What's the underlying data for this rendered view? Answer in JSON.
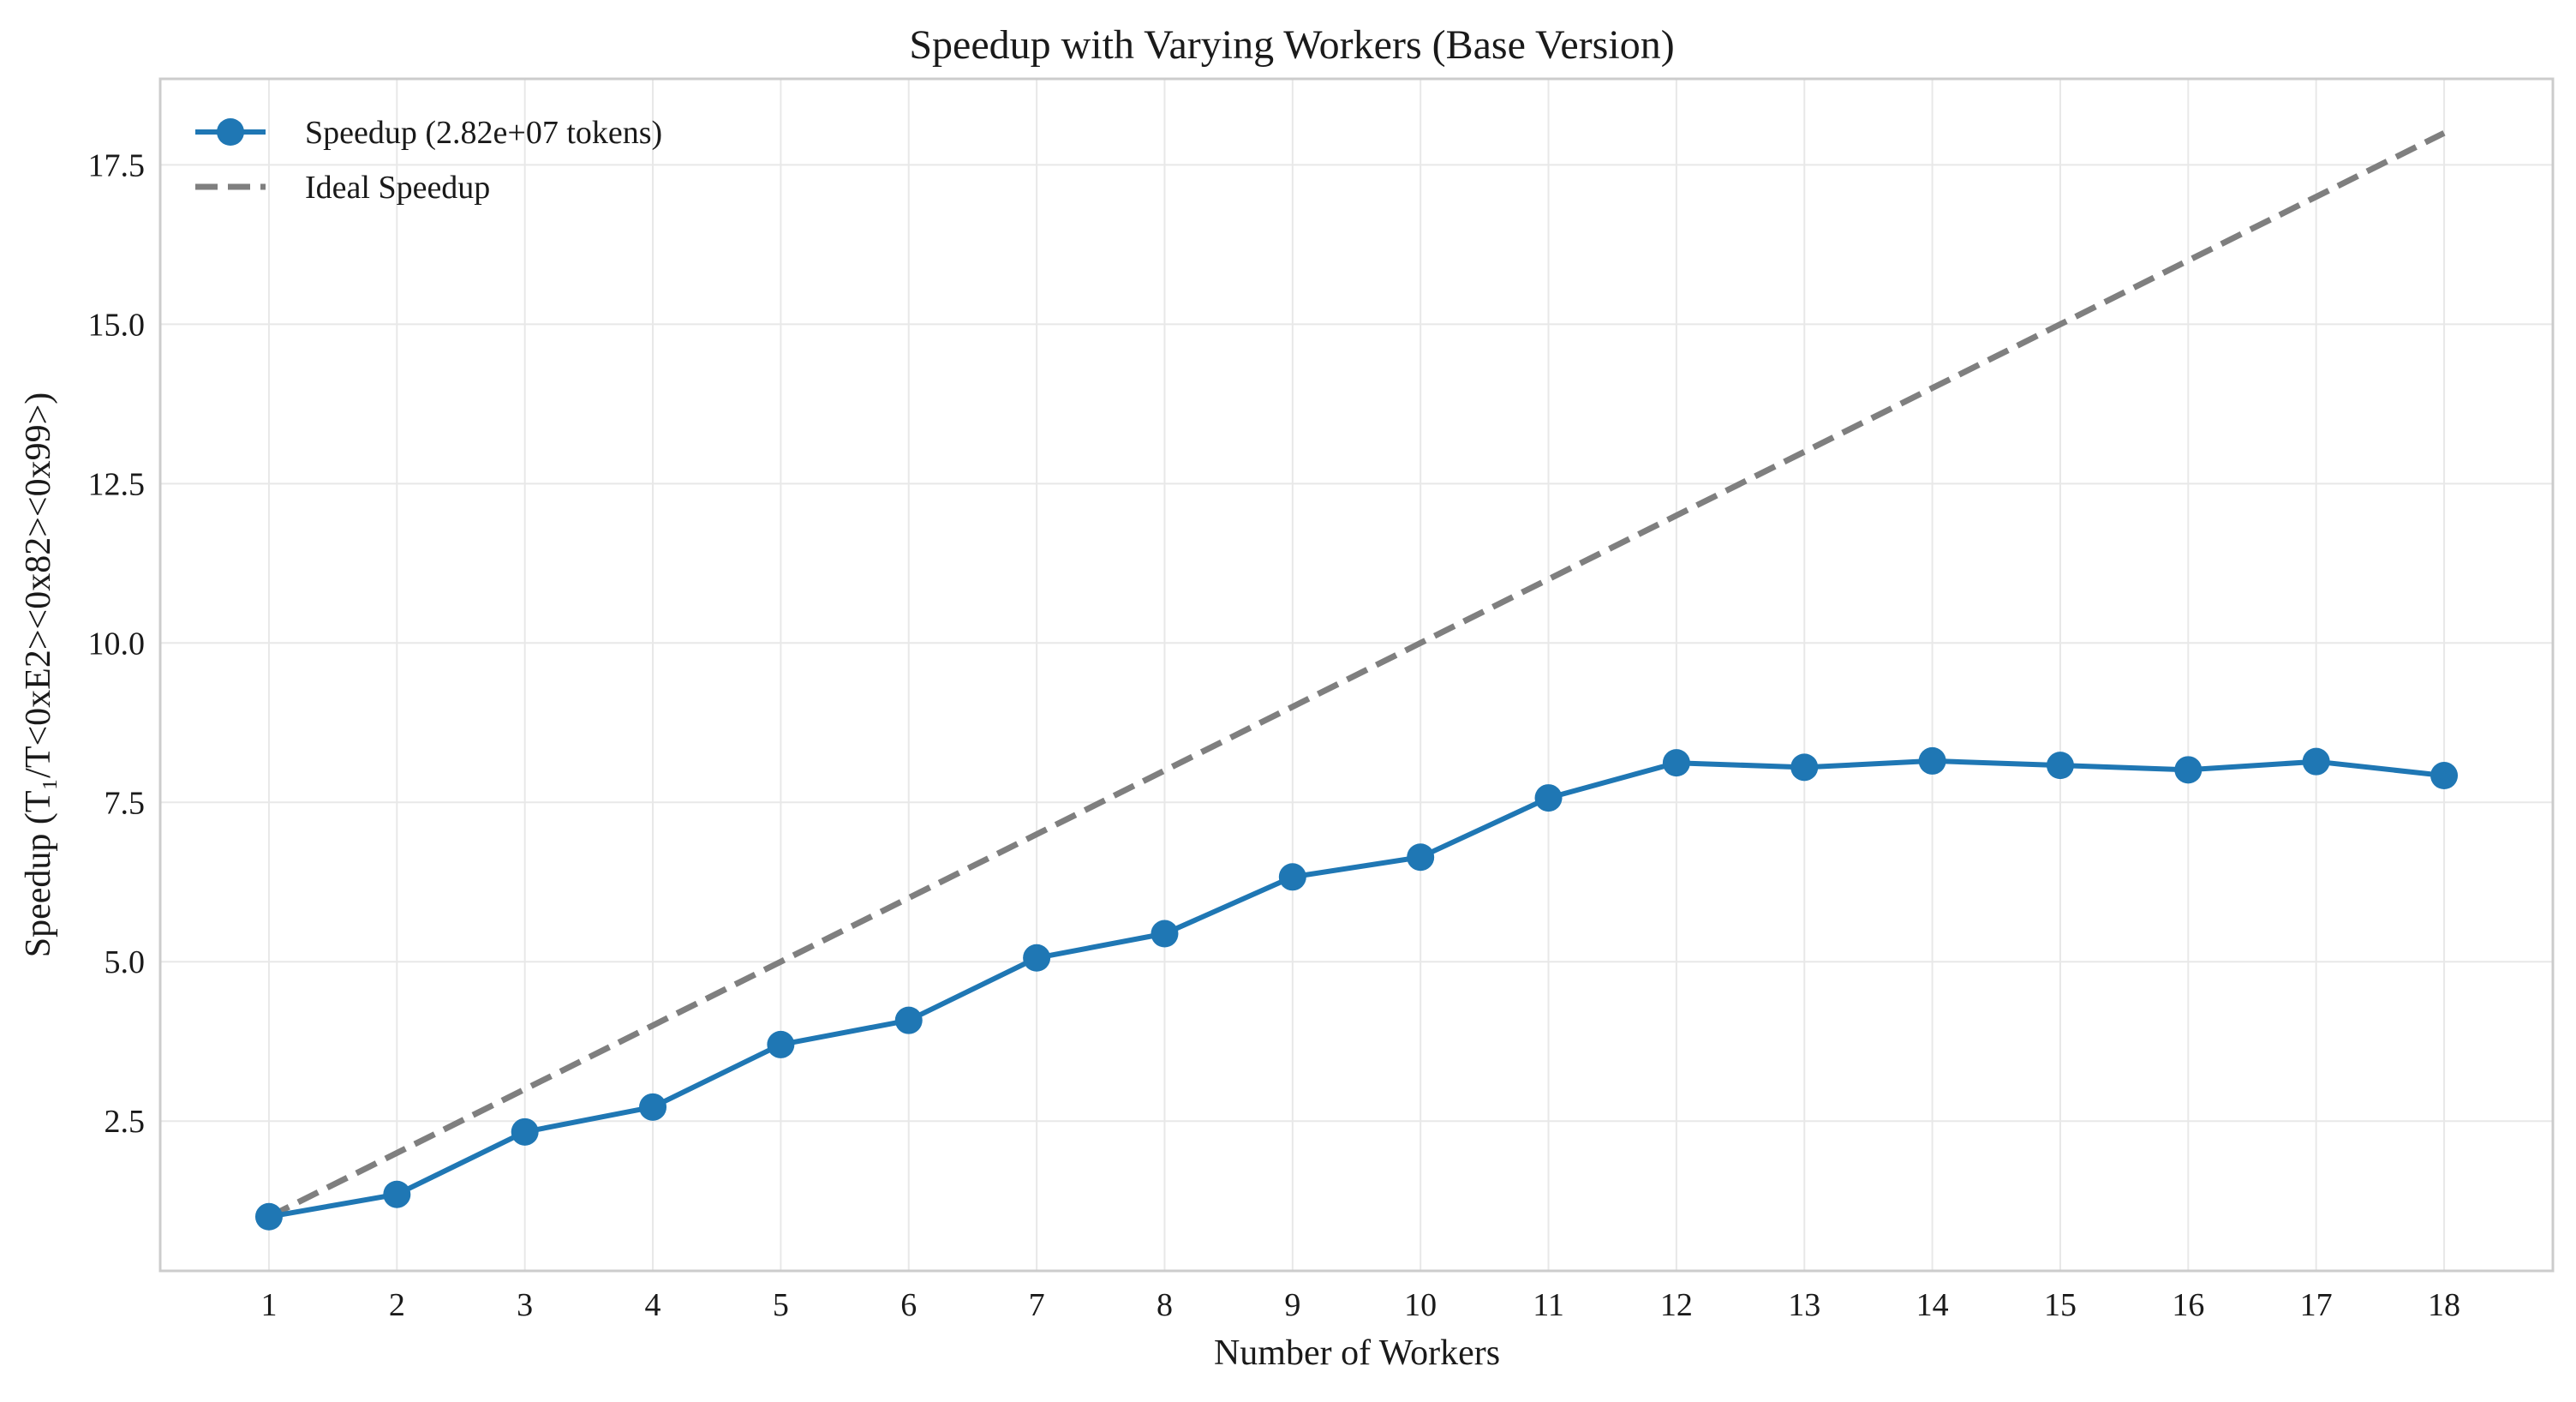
{
  "chart_data": {
    "type": "line",
    "title": "Speedup with Varying Workers (Base Version)",
    "xlabel": "Number of Workers",
    "ylabel": "Speedup (T₁/T<0xE2><0x82><0x99>)",
    "x": [
      1,
      2,
      3,
      4,
      5,
      6,
      7,
      8,
      9,
      10,
      11,
      12,
      13,
      14,
      15,
      16,
      17,
      18
    ],
    "xlim": [
      0.15,
      18.85
    ],
    "ylim": [
      0.15,
      18.85
    ],
    "yticks": [
      2.5,
      5.0,
      7.5,
      10.0,
      12.5,
      15.0,
      17.5
    ],
    "ytick_labels": [
      "2.5",
      "5.0",
      "7.5",
      "10.0",
      "12.5",
      "15.0",
      "17.5"
    ],
    "grid": true,
    "legend_position": "top-left",
    "series": [
      {
        "name": "Speedup (2.82e+07 tokens)",
        "style": "solid-with-markers",
        "color": "#1f77b4",
        "values": [
          1.0,
          1.35,
          2.33,
          2.72,
          3.7,
          4.08,
          5.06,
          5.44,
          6.33,
          6.64,
          7.57,
          8.12,
          8.05,
          8.15,
          8.08,
          8.01,
          8.14,
          7.92
        ]
      },
      {
        "name": "Ideal Speedup",
        "style": "dashed",
        "color": "#7f7f7f",
        "values": [
          1,
          2,
          3,
          4,
          5,
          6,
          7,
          8,
          9,
          10,
          11,
          12,
          13,
          14,
          15,
          16,
          17,
          18
        ]
      }
    ]
  }
}
